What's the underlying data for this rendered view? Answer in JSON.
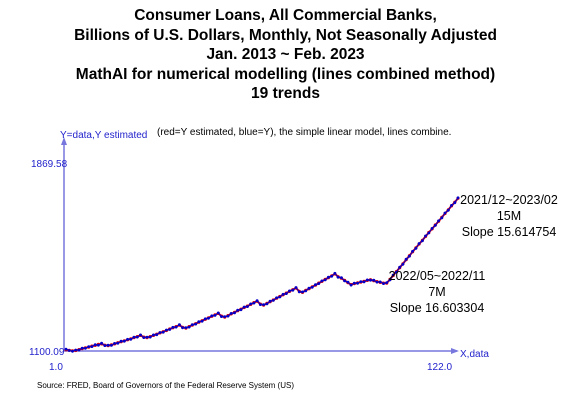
{
  "title_lines": [
    "Consumer Loans, All Commercial Banks,",
    "Billions of U.S. Dollars, Monthly, Not Seasonally Adjusted",
    "Jan. 2013 ~ Feb. 2023",
    "MathAI for numerical modelling (lines combined method)",
    "19 trends"
  ],
  "plot": {
    "y_axis_label": "Y=data,Y estimated",
    "caption": "(red=Y estimated, blue=Y), the simple linear model, lines combine.",
    "x_axis_label": "X,data",
    "y_max_label": "1869.58",
    "y_min_label": "1100.09",
    "x_min_label": "1.0",
    "x_max_label": "122.0"
  },
  "annotations": [
    {
      "lines": [
        "2021/12~2023/02",
        "15M",
        "Slope 15.614754"
      ]
    },
    {
      "lines": [
        "2022/05~2022/11",
        "7M",
        "Slope 16.603304"
      ]
    }
  ],
  "source": "Source: FRED, Board of Governors of the Federal Reserve System (US)",
  "colors": {
    "estimated": "#e00000",
    "data": "#0000cc",
    "axis": "#7777dd"
  },
  "chart_data": {
    "type": "line",
    "xlim": [
      1,
      122
    ],
    "ylim": [
      1100.09,
      1869.58
    ],
    "x": [
      1,
      2,
      3,
      4,
      5,
      6,
      7,
      8,
      9,
      10,
      11,
      12,
      13,
      14,
      15,
      16,
      17,
      18,
      19,
      20,
      21,
      22,
      23,
      24,
      25,
      26,
      27,
      28,
      29,
      30,
      31,
      32,
      33,
      34,
      35,
      36,
      37,
      38,
      39,
      40,
      41,
      42,
      43,
      44,
      45,
      46,
      47,
      48,
      49,
      50,
      51,
      52,
      53,
      54,
      55,
      56,
      57,
      58,
      59,
      60,
      61,
      62,
      63,
      64,
      65,
      66,
      67,
      68,
      69,
      70,
      71,
      72,
      73,
      74,
      75,
      76,
      77,
      78,
      79,
      80,
      81,
      82,
      83,
      84,
      85,
      86,
      87,
      88,
      89,
      90,
      91,
      92,
      93,
      94,
      95,
      96,
      97,
      98,
      99,
      100,
      101,
      102,
      103,
      104,
      105,
      106,
      107,
      108,
      109,
      110,
      111,
      112,
      113,
      114,
      115,
      116,
      117,
      118,
      119,
      120,
      121,
      122
    ],
    "series": [
      {
        "name": "Y estimated",
        "values": [
          1105,
          1103,
          1101,
          1102,
          1106,
          1110,
          1113,
          1116,
          1120,
          1123,
          1127,
          1129,
          1124,
          1122,
          1125,
          1129,
          1134,
          1138,
          1142,
          1146,
          1150,
          1155,
          1159,
          1164,
          1157,
          1155,
          1159,
          1164,
          1169,
          1174,
          1179,
          1184,
          1190,
          1195,
          1200,
          1206,
          1197,
          1194,
          1200,
          1206,
          1212,
          1218,
          1224,
          1230,
          1236,
          1242,
          1248,
          1254,
          1243,
          1239,
          1245,
          1252,
          1258,
          1265,
          1271,
          1278,
          1284,
          1291,
          1298,
          1304,
          1292,
          1288,
          1295,
          1302,
          1309,
          1316,
          1323,
          1330,
          1337,
          1344,
          1351,
          1358,
          1344,
          1340,
          1348,
          1355,
          1363,
          1370,
          1378,
          1385,
          1393,
          1400,
          1408,
          1416,
          1404,
          1398,
          1389,
          1380,
          1372,
          1376,
          1379,
          1382,
          1385,
          1389,
          1392,
          1388,
          1384,
          1381,
          1378,
          1378,
          1393,
          1409,
          1425,
          1441,
          1457,
          1474,
          1490,
          1506,
          1522,
          1538,
          1553,
          1569,
          1585,
          1600,
          1616,
          1631,
          1647,
          1663,
          1678,
          1694,
          1709,
          1725
        ]
      },
      {
        "name": "Y",
        "values": [
          1108,
          1102,
          1099,
          1104,
          1104,
          1112,
          1111,
          1118,
          1118,
          1126,
          1124,
          1132,
          1122,
          1124,
          1123,
          1131,
          1132,
          1140,
          1140,
          1148,
          1148,
          1157,
          1157,
          1166,
          1155,
          1157,
          1157,
          1166,
          1167,
          1176,
          1177,
          1186,
          1188,
          1197,
          1198,
          1208,
          1195,
          1196,
          1198,
          1208,
          1210,
          1220,
          1222,
          1232,
          1234,
          1244,
          1246,
          1256,
          1241,
          1241,
          1243,
          1254,
          1256,
          1267,
          1269,
          1280,
          1282,
          1293,
          1296,
          1306,
          1290,
          1290,
          1293,
          1304,
          1307,
          1318,
          1321,
          1332,
          1335,
          1346,
          1349,
          1360,
          1342,
          1342,
          1346,
          1357,
          1361,
          1372,
          1376,
          1387,
          1391,
          1402,
          1406,
          1418,
          1402,
          1400,
          1387,
          1382,
          1370,
          1378,
          1377,
          1384,
          1383,
          1391,
          1390,
          1390,
          1382,
          1383,
          1376,
          1380,
          1391,
          1411,
          1423,
          1443,
          1455,
          1476,
          1488,
          1508,
          1520,
          1540,
          1551,
          1571,
          1583,
          1602,
          1614,
          1633,
          1645,
          1665,
          1676,
          1696,
          1707,
          1727
        ]
      }
    ]
  }
}
